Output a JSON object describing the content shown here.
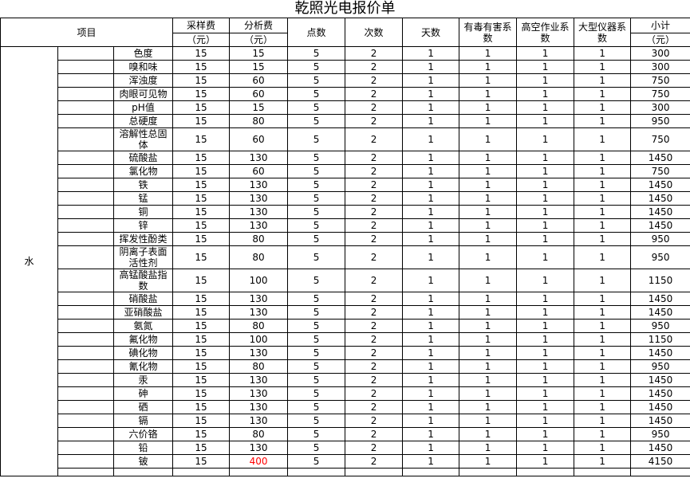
{
  "title": "乾照光电报价单",
  "colors": {
    "highlight_red": "#ff0000",
    "grid_black": "#000000",
    "grid_light": "#c9c9c9"
  },
  "table": {
    "header": {
      "project": "项目",
      "sampling_fee": "采样费",
      "analysis_fee": "分析费",
      "unit": "（元）",
      "points": "点数",
      "times": "次数",
      "days": "天数",
      "toxic_coefficient": "有毒有害系数",
      "high_altitude_coefficient": "高空作业系数",
      "large_instrument_coefficient": "大型仪器系数",
      "subtotal": "小计"
    },
    "category": "水",
    "rows": [
      {
        "item": "色度",
        "sampling_fee": "15",
        "analysis_fee": "15",
        "points": "5",
        "times": "2",
        "days": "1",
        "toxic": "1",
        "high_altitude": "1",
        "large_instrument": "1",
        "subtotal": "300"
      },
      {
        "item": "嗅和味",
        "sampling_fee": "15",
        "analysis_fee": "15",
        "points": "5",
        "times": "2",
        "days": "1",
        "toxic": "1",
        "high_altitude": "1",
        "large_instrument": "1",
        "subtotal": "300"
      },
      {
        "item": "浑浊度",
        "sampling_fee": "15",
        "analysis_fee": "60",
        "points": "5",
        "times": "2",
        "days": "1",
        "toxic": "1",
        "high_altitude": "1",
        "large_instrument": "1",
        "subtotal": "750"
      },
      {
        "item": "肉眼可见物",
        "sampling_fee": "15",
        "analysis_fee": "60",
        "points": "5",
        "times": "2",
        "days": "1",
        "toxic": "1",
        "high_altitude": "1",
        "large_instrument": "1",
        "subtotal": "750"
      },
      {
        "item": "pH值",
        "sampling_fee": "15",
        "analysis_fee": "15",
        "points": "5",
        "times": "2",
        "days": "1",
        "toxic": "1",
        "high_altitude": "1",
        "large_instrument": "1",
        "subtotal": "300"
      },
      {
        "item": "总硬度",
        "sampling_fee": "15",
        "analysis_fee": "80",
        "points": "5",
        "times": "2",
        "days": "1",
        "toxic": "1",
        "high_altitude": "1",
        "large_instrument": "1",
        "subtotal": "950"
      },
      {
        "item": "溶解性总固体",
        "sampling_fee": "15",
        "analysis_fee": "60",
        "points": "5",
        "times": "2",
        "days": "1",
        "toxic": "1",
        "high_altitude": "1",
        "large_instrument": "1",
        "subtotal": "750"
      },
      {
        "item": "硫酸盐",
        "sampling_fee": "15",
        "analysis_fee": "130",
        "points": "5",
        "times": "2",
        "days": "1",
        "toxic": "1",
        "high_altitude": "1",
        "large_instrument": "1",
        "subtotal": "1450"
      },
      {
        "item": "氯化物",
        "sampling_fee": "15",
        "analysis_fee": "60",
        "points": "5",
        "times": "2",
        "days": "1",
        "toxic": "1",
        "high_altitude": "1",
        "large_instrument": "1",
        "subtotal": "750"
      },
      {
        "item": "铁",
        "sampling_fee": "15",
        "analysis_fee": "130",
        "points": "5",
        "times": "2",
        "days": "1",
        "toxic": "1",
        "high_altitude": "1",
        "large_instrument": "1",
        "subtotal": "1450"
      },
      {
        "item": "锰",
        "sampling_fee": "15",
        "analysis_fee": "130",
        "points": "5",
        "times": "2",
        "days": "1",
        "toxic": "1",
        "high_altitude": "1",
        "large_instrument": "1",
        "subtotal": "1450"
      },
      {
        "item": "铜",
        "sampling_fee": "15",
        "analysis_fee": "130",
        "points": "5",
        "times": "2",
        "days": "1",
        "toxic": "1",
        "high_altitude": "1",
        "large_instrument": "1",
        "subtotal": "1450"
      },
      {
        "item": "锌",
        "sampling_fee": "15",
        "analysis_fee": "130",
        "points": "5",
        "times": "2",
        "days": "1",
        "toxic": "1",
        "high_altitude": "1",
        "large_instrument": "1",
        "subtotal": "1450"
      },
      {
        "item": "挥发性酚类",
        "sampling_fee": "15",
        "analysis_fee": "80",
        "points": "5",
        "times": "2",
        "days": "1",
        "toxic": "1",
        "high_altitude": "1",
        "large_instrument": "1",
        "subtotal": "950"
      },
      {
        "item": "阴离子表面活性剂",
        "sampling_fee": "15",
        "analysis_fee": "80",
        "points": "5",
        "times": "2",
        "days": "1",
        "toxic": "1",
        "high_altitude": "1",
        "large_instrument": "1",
        "subtotal": "950"
      },
      {
        "item": "高锰酸盐指数",
        "sampling_fee": "15",
        "analysis_fee": "100",
        "points": "5",
        "times": "2",
        "days": "1",
        "toxic": "1",
        "high_altitude": "1",
        "large_instrument": "1",
        "subtotal": "1150"
      },
      {
        "item": "硝酸盐",
        "sampling_fee": "15",
        "analysis_fee": "130",
        "points": "5",
        "times": "2",
        "days": "1",
        "toxic": "1",
        "high_altitude": "1",
        "large_instrument": "1",
        "subtotal": "1450"
      },
      {
        "item": "亚硝酸盐",
        "sampling_fee": "15",
        "analysis_fee": "130",
        "points": "5",
        "times": "2",
        "days": "1",
        "toxic": "1",
        "high_altitude": "1",
        "large_instrument": "1",
        "subtotal": "1450"
      },
      {
        "item": "氨氮",
        "sampling_fee": "15",
        "analysis_fee": "80",
        "points": "5",
        "times": "2",
        "days": "1",
        "toxic": "1",
        "high_altitude": "1",
        "large_instrument": "1",
        "subtotal": "950"
      },
      {
        "item": "氟化物",
        "sampling_fee": "15",
        "analysis_fee": "100",
        "points": "5",
        "times": "2",
        "days": "1",
        "toxic": "1",
        "high_altitude": "1",
        "large_instrument": "1",
        "subtotal": "1150"
      },
      {
        "item": "碘化物",
        "sampling_fee": "15",
        "analysis_fee": "130",
        "points": "5",
        "times": "2",
        "days": "1",
        "toxic": "1",
        "high_altitude": "1",
        "large_instrument": "1",
        "subtotal": "1450"
      },
      {
        "item": "氰化物",
        "sampling_fee": "15",
        "analysis_fee": "80",
        "points": "5",
        "times": "2",
        "days": "1",
        "toxic": "1",
        "high_altitude": "1",
        "large_instrument": "1",
        "subtotal": "950"
      },
      {
        "item": "汞",
        "sampling_fee": "15",
        "analysis_fee": "130",
        "points": "5",
        "times": "2",
        "days": "1",
        "toxic": "1",
        "high_altitude": "1",
        "large_instrument": "1",
        "subtotal": "1450"
      },
      {
        "item": "砷",
        "sampling_fee": "15",
        "analysis_fee": "130",
        "points": "5",
        "times": "2",
        "days": "1",
        "toxic": "1",
        "high_altitude": "1",
        "large_instrument": "1",
        "subtotal": "1450"
      },
      {
        "item": "硒",
        "sampling_fee": "15",
        "analysis_fee": "130",
        "points": "5",
        "times": "2",
        "days": "1",
        "toxic": "1",
        "high_altitude": "1",
        "large_instrument": "1",
        "subtotal": "1450"
      },
      {
        "item": "镉",
        "sampling_fee": "15",
        "analysis_fee": "130",
        "points": "5",
        "times": "2",
        "days": "1",
        "toxic": "1",
        "high_altitude": "1",
        "large_instrument": "1",
        "subtotal": "1450"
      },
      {
        "item": "六价铬",
        "sampling_fee": "15",
        "analysis_fee": "80",
        "points": "5",
        "times": "2",
        "days": "1",
        "toxic": "1",
        "high_altitude": "1",
        "large_instrument": "1",
        "subtotal": "950"
      },
      {
        "item": "铅",
        "sampling_fee": "15",
        "analysis_fee": "130",
        "points": "5",
        "times": "2",
        "days": "1",
        "toxic": "1",
        "high_altitude": "1",
        "large_instrument": "1",
        "subtotal": "1450"
      },
      {
        "item": "铍",
        "sampling_fee": "15",
        "analysis_fee": "400",
        "analysis_fee_highlight": true,
        "points": "5",
        "times": "2",
        "days": "1",
        "toxic": "1",
        "high_altitude": "1",
        "large_instrument": "1",
        "subtotal": "4150"
      }
    ]
  }
}
